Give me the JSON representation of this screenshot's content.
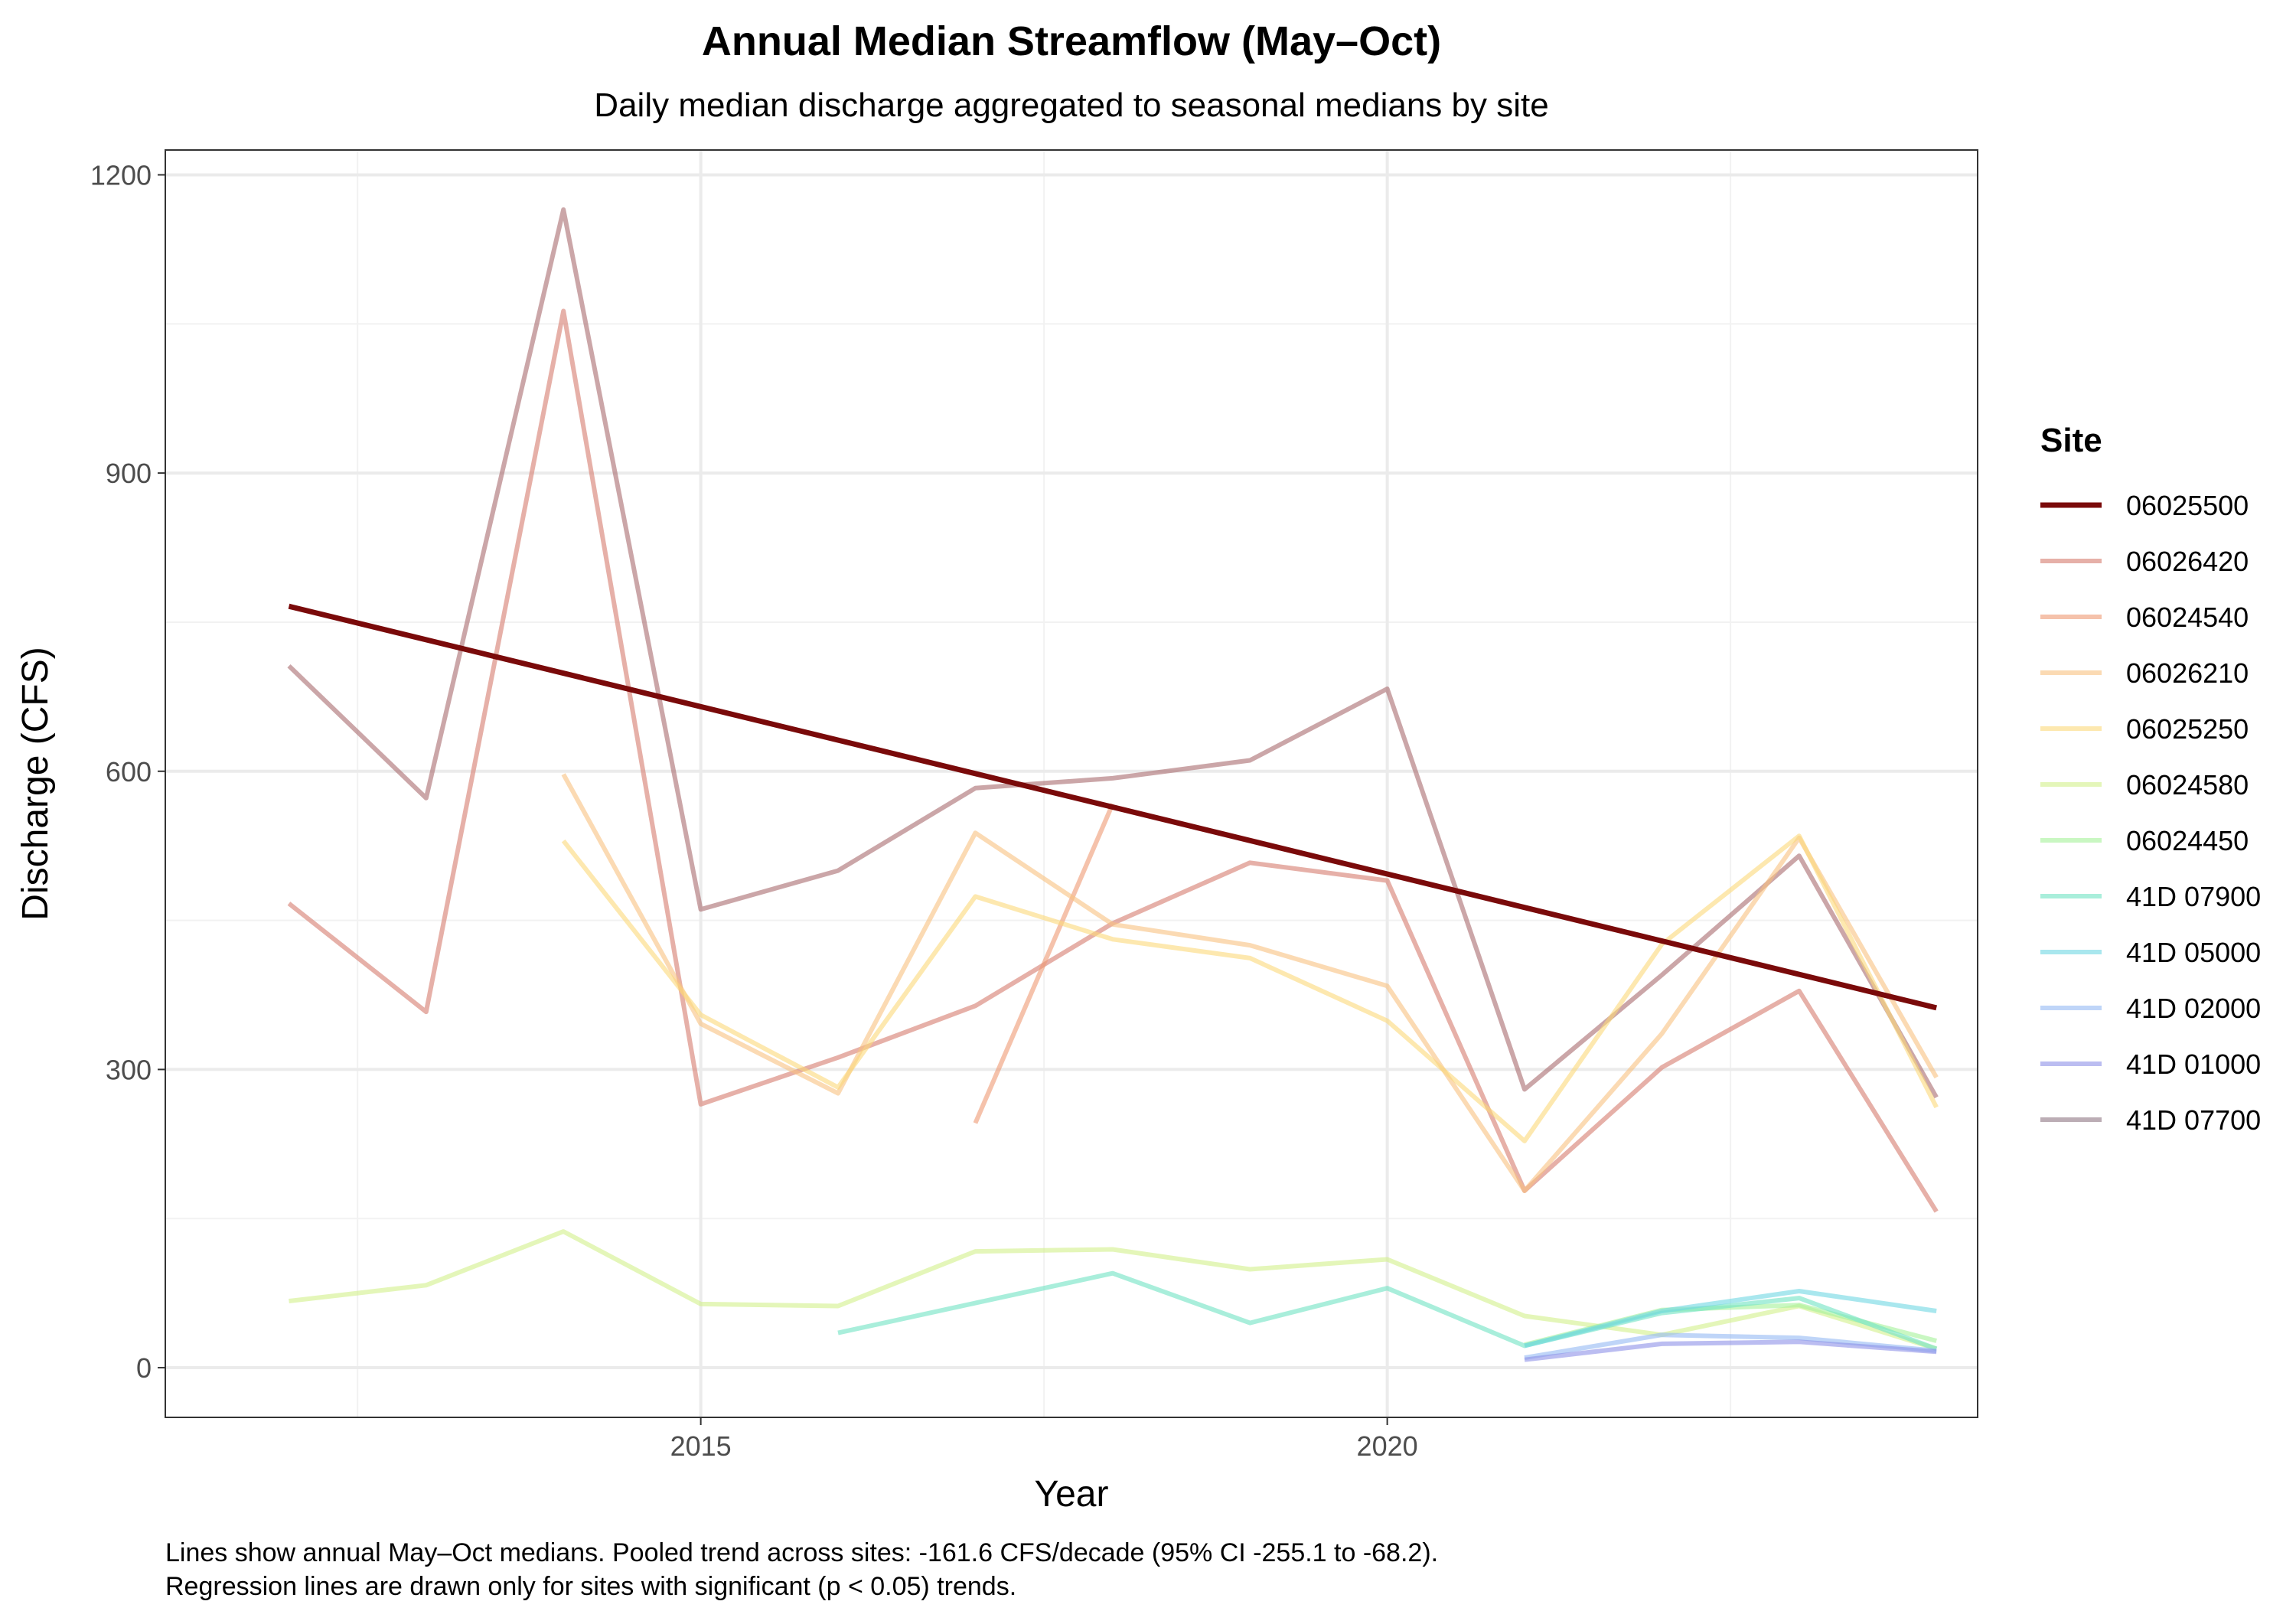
{
  "chart_data": {
    "type": "line",
    "title": "Annual Median Streamflow (May–Oct)",
    "subtitle": "Daily median discharge aggregated to seasonal medians by site",
    "xlabel": "Year",
    "ylabel": "Discharge (CFS)",
    "xlim": [
      2011.1,
      2024.3
    ],
    "ylim": [
      -50,
      1225
    ],
    "x_ticks": [
      2015,
      2020
    ],
    "y_ticks": [
      0,
      300,
      600,
      900,
      1200
    ],
    "grid": true,
    "legend_title": "Site",
    "legend_position": "right",
    "caption_lines": [
      "Lines show annual May–Oct medians. Pooled trend across sites: -161.6 CFS/decade (95% CI -255.1 to -68.2).",
      "Regression lines are drawn only for sites with significant (p < 0.05) trends."
    ],
    "legend": [
      {
        "label": "06025500",
        "color": "#7a0a0a",
        "opacity": 1.0,
        "width": 7
      },
      {
        "label": "06026420",
        "color": "#d9867a",
        "opacity": 0.65,
        "width": 6
      },
      {
        "label": "06024540",
        "color": "#ee9a73",
        "opacity": 0.6,
        "width": 6
      },
      {
        "label": "06026210",
        "color": "#f8c280",
        "opacity": 0.6,
        "width": 6
      },
      {
        "label": "06025250",
        "color": "#fbd97a",
        "opacity": 0.6,
        "width": 6
      },
      {
        "label": "06024580",
        "color": "#d2f08a",
        "opacity": 0.6,
        "width": 6
      },
      {
        "label": "06024450",
        "color": "#a5f29a",
        "opacity": 0.6,
        "width": 6
      },
      {
        "label": "41D 07900",
        "color": "#6fe3c3",
        "opacity": 0.6,
        "width": 6
      },
      {
        "label": "41D 05000",
        "color": "#6fd7e3",
        "opacity": 0.6,
        "width": 6
      },
      {
        "label": "41D 02000",
        "color": "#94b9f3",
        "opacity": 0.6,
        "width": 6
      },
      {
        "label": "41D 01000",
        "color": "#8e91e8",
        "opacity": 0.6,
        "width": 6
      },
      {
        "label": "41D 07700",
        "color": "#8f7784",
        "opacity": 0.6,
        "width": 6
      }
    ],
    "series": [
      {
        "name": "41D 07700",
        "color": "#a86b6e",
        "opacity": 0.6,
        "width": 6,
        "x": [
          2012,
          2013,
          2014,
          2015,
          2016,
          2017,
          2018,
          2019,
          2020,
          2021,
          2022,
          2023,
          2024
        ],
        "y": [
          706,
          573,
          1165,
          461,
          500,
          583,
          593,
          611,
          683,
          280,
          395,
          515,
          272
        ]
      },
      {
        "name": "06026420",
        "color": "#d9867a",
        "opacity": 0.65,
        "width": 6,
        "x": [
          2012,
          2013,
          2014,
          2015,
          2016,
          2017,
          2018,
          2019,
          2020,
          2021,
          2022,
          2023,
          2024
        ],
        "y": [
          467,
          358,
          1063,
          265,
          312,
          364,
          447,
          508,
          490,
          178,
          302,
          379,
          157
        ]
      },
      {
        "name": "06024540",
        "color": "#ee9a73",
        "opacity": 0.6,
        "width": 6,
        "x": [
          2017,
          2018
        ],
        "y": [
          246,
          567
        ]
      },
      {
        "name": "06026210",
        "color": "#f8c280",
        "opacity": 0.6,
        "width": 6,
        "x": [
          2014,
          2015,
          2016,
          2017,
          2018,
          2019,
          2020,
          2021,
          2022,
          2023,
          2024
        ],
        "y": [
          597,
          346,
          276,
          538,
          446,
          425,
          384,
          178,
          336,
          533,
          292
        ]
      },
      {
        "name": "06025250",
        "color": "#fbd97a",
        "opacity": 0.6,
        "width": 6,
        "x": [
          2014,
          2015,
          2016,
          2017,
          2018,
          2019,
          2020,
          2021,
          2022,
          2023,
          2024
        ],
        "y": [
          530,
          355,
          282,
          474,
          431,
          412,
          349,
          228,
          426,
          535,
          262
        ]
      },
      {
        "name": "06024580",
        "color": "#d2f08a",
        "opacity": 0.6,
        "width": 6,
        "x": [
          2012,
          2013,
          2014,
          2015,
          2016,
          2017,
          2018,
          2019,
          2020,
          2021,
          2022,
          2023,
          2024
        ],
        "y": [
          67,
          83,
          137,
          64,
          62,
          117,
          119,
          99,
          109,
          52,
          33,
          62,
          19
        ]
      },
      {
        "name": "06024450",
        "color": "#a5f29a",
        "opacity": 0.6,
        "width": 6,
        "x": [
          2021,
          2022,
          2023,
          2024
        ],
        "y": [
          23,
          58,
          63,
          27
        ]
      },
      {
        "name": "41D 07900",
        "color": "#6fe3c3",
        "opacity": 0.6,
        "width": 6,
        "x": [
          2016,
          2017,
          2018,
          2019,
          2020,
          2021,
          2022,
          2023,
          2024
        ],
        "y": [
          35,
          65,
          95,
          45,
          80,
          22,
          55,
          70,
          19
        ]
      },
      {
        "name": "41D 05000",
        "color": "#6fd7e3",
        "opacity": 0.6,
        "width": 6,
        "x": [
          2021,
          2022,
          2023,
          2024
        ],
        "y": [
          22,
          57,
          77,
          57
        ]
      },
      {
        "name": "41D 02000",
        "color": "#94b9f3",
        "opacity": 0.6,
        "width": 6,
        "x": [
          2021,
          2022,
          2023,
          2024
        ],
        "y": [
          10,
          33,
          30,
          17
        ]
      },
      {
        "name": "41D 01000",
        "color": "#8e91e8",
        "opacity": 0.6,
        "width": 6,
        "x": [
          2021,
          2022,
          2023,
          2024
        ],
        "y": [
          8,
          24,
          26,
          16
        ]
      },
      {
        "name": "06025500",
        "color": "#7a0a0a",
        "opacity": 1.0,
        "width": 7,
        "x": [
          2012,
          2024
        ],
        "y": [
          766,
          362
        ]
      }
    ]
  }
}
